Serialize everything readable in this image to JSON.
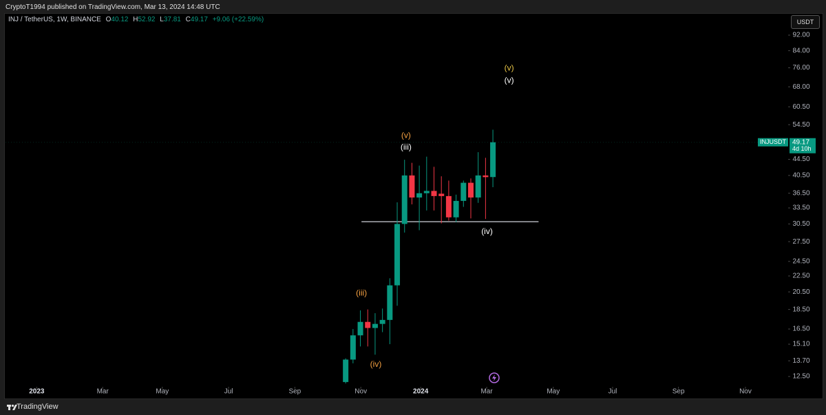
{
  "header": {
    "text": "CryptoT1994 published on TradingView.com, Mar 13, 2024 14:48 UTC"
  },
  "footer": {
    "brand": "TradingView"
  },
  "currency_button": "USDT",
  "chart_data": {
    "type": "candlestick",
    "title": "INJ / TetherUS, 1W, BINANCE",
    "ohlc_labels": [
      "O",
      "H",
      "L",
      "C"
    ],
    "change_label": "+9.06 (+22.59%)",
    "symbol_tag": "INJUSDT",
    "countdown": "4d 10h",
    "categories": [
      null,
      null,
      null,
      null,
      null,
      null,
      null,
      null,
      null,
      null,
      null,
      null,
      null,
      null,
      null,
      null,
      null,
      null,
      null,
      null,
      null
    ],
    "open": [
      12.1,
      13.8,
      15.9,
      17.2,
      16.6,
      17.0,
      17.4,
      21.3,
      30.5,
      40.5,
      35.6,
      36.5,
      37.0,
      36.4,
      35.9,
      31.7,
      34.9,
      38.8,
      35.6,
      40.5,
      40.12
    ],
    "high": [
      13.9,
      16.5,
      18.4,
      18.5,
      18.1,
      18.6,
      22.2,
      34.6,
      44.4,
      43.6,
      42.9,
      45.2,
      42.6,
      40.3,
      39.3,
      36.2,
      39.3,
      39.8,
      46.4,
      44.9,
      52.92
    ],
    "low": [
      12.0,
      13.5,
      14.9,
      14.9,
      14.2,
      16.2,
      15.1,
      18.9,
      29.0,
      34.2,
      29.4,
      33.0,
      33.0,
      30.6,
      31.1,
      30.8,
      33.7,
      31.5,
      34.5,
      31.4,
      37.81
    ],
    "close": [
      13.8,
      15.9,
      17.2,
      16.6,
      17.0,
      17.4,
      21.3,
      30.5,
      40.5,
      35.6,
      36.5,
      37.0,
      35.9,
      35.9,
      31.7,
      34.9,
      38.8,
      35.6,
      40.5,
      40.1,
      49.17
    ],
    "up_color": "#089981",
    "down_color": "#f23645",
    "log_scale": true,
    "ylim": [
      11.77,
      103.4
    ],
    "yticks": [
      {
        "value": 92,
        "label": "92.00"
      },
      {
        "value": 84,
        "label": "84.00"
      },
      {
        "value": 76,
        "label": "76.00"
      },
      {
        "value": 68,
        "label": "68.00"
      },
      {
        "value": 60.5,
        "label": "60.50"
      },
      {
        "value": 54.5,
        "label": "54.50"
      },
      {
        "value": 44.5,
        "label": "44.50"
      },
      {
        "value": 40.5,
        "label": "40.50"
      },
      {
        "value": 36.5,
        "label": "36.50"
      },
      {
        "value": 33.5,
        "label": "33.50"
      },
      {
        "value": 30.5,
        "label": "30.50"
      },
      {
        "value": 27.5,
        "label": "27.50"
      },
      {
        "value": 24.5,
        "label": "24.50"
      },
      {
        "value": 22.5,
        "label": "22.50"
      },
      {
        "value": 20.5,
        "label": "20.50"
      },
      {
        "value": 18.5,
        "label": "18.50"
      },
      {
        "value": 16.5,
        "label": "16.50"
      },
      {
        "value": 15.1,
        "label": "15.10"
      },
      {
        "value": 13.7,
        "label": "13.70"
      },
      {
        "value": 12.5,
        "label": "12.50"
      }
    ],
    "xlim": [
      -46.2,
      60.1
    ],
    "xticks": [
      {
        "value": -41.96,
        "label": "2023"
      },
      {
        "value": -33.0,
        "label": "Mar"
      },
      {
        "value": -24.9,
        "label": "May"
      },
      {
        "value": -15.9,
        "label": "Jul"
      },
      {
        "value": -6.9,
        "label": "Sep"
      },
      {
        "value": 2.06,
        "label": "Nov"
      },
      {
        "value": 10.19,
        "label": "2024"
      },
      {
        "value": 19.16,
        "label": "Mar"
      },
      {
        "value": 28.2,
        "label": "May"
      },
      {
        "value": 36.26,
        "label": "Jul"
      },
      {
        "value": 45.2,
        "label": "Sep"
      },
      {
        "value": 54.3,
        "label": "Nov"
      }
    ],
    "hline": {
      "value": 30.9,
      "x": [
        2.15,
        26.2
      ],
      "color": "#d1d4dc"
    },
    "annotations": [
      {
        "text": "(v)",
        "x": 8.2,
        "y": 51.1,
        "color": "#f5a142"
      },
      {
        "text": "(iii)",
        "x": 8.2,
        "y": 47.7,
        "color": "#ffffff"
      },
      {
        "text": "(iii)",
        "x": 2.15,
        "y": 20.3,
        "color": "#f5a142"
      },
      {
        "text": "(iv)",
        "x": 4.1,
        "y": 13.4,
        "color": "#f5a142"
      },
      {
        "text": "(v)",
        "x": 22.2,
        "y": 75.8,
        "color": "#e8c547"
      },
      {
        "text": "(v)",
        "x": 22.2,
        "y": 70.5,
        "color": "#ffffff"
      },
      {
        "text": "(iv)",
        "x": 19.2,
        "y": 29.1,
        "color": "#ffffff"
      }
    ]
  }
}
